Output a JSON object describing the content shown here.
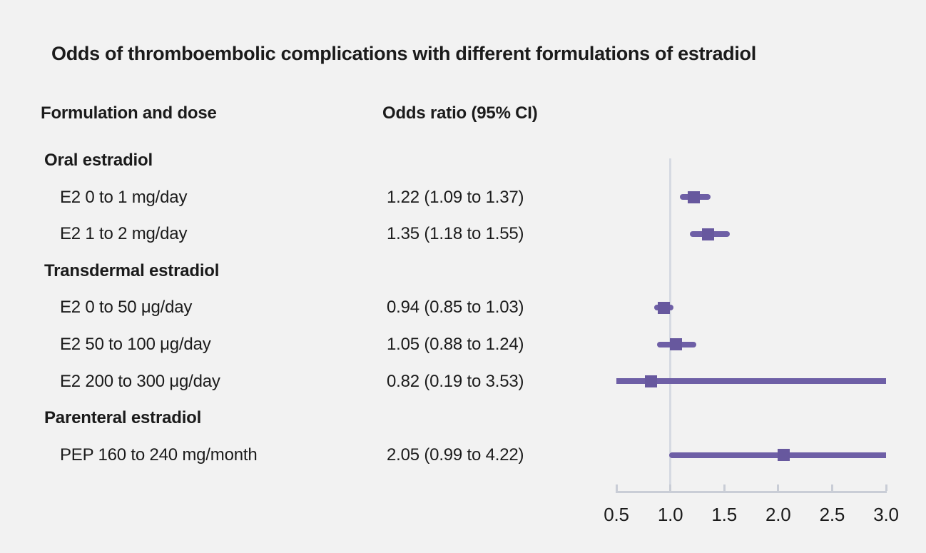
{
  "figure": {
    "title": "Odds of thromboembolic complications with different formulations of estradiol",
    "column_headers": {
      "formulation": "Formulation and dose",
      "odds_ratio": "Odds ratio (95% CI)"
    }
  },
  "chart_data": {
    "type": "forest",
    "title": "Odds of thromboembolic complications with different formulations of estradiol",
    "xlabel": "",
    "ylabel": "",
    "axis": {
      "min": 0.5,
      "max": 3.0,
      "ticks": [
        0.5,
        1.0,
        1.5,
        2.0,
        2.5,
        3.0
      ],
      "reference_line": 1.0,
      "grid": false
    },
    "rows": [
      {
        "kind": "group",
        "label": "Oral estradiol"
      },
      {
        "kind": "item",
        "label": "E2 0 to 1 mg/day",
        "or_text": "1.22 (1.09 to 1.37)",
        "or": 1.22,
        "ci_low": 1.09,
        "ci_high": 1.37
      },
      {
        "kind": "item",
        "label": "E2 1 to 2 mg/day",
        "or_text": "1.35 (1.18 to 1.55)",
        "or": 1.35,
        "ci_low": 1.18,
        "ci_high": 1.55
      },
      {
        "kind": "group",
        "label": "Transdermal estradiol"
      },
      {
        "kind": "item",
        "label": "E2 0 to 50 μg/day",
        "or_text": "0.94 (0.85 to 1.03)",
        "or": 0.94,
        "ci_low": 0.85,
        "ci_high": 1.03
      },
      {
        "kind": "item",
        "label": "E2 50 to 100 μg/day",
        "or_text": "1.05 (0.88 to 1.24)",
        "or": 1.05,
        "ci_low": 0.88,
        "ci_high": 1.24
      },
      {
        "kind": "item",
        "label": "E2 200 to 300 μg/day",
        "or_text": "0.82 (0.19 to 3.53)",
        "or": 0.82,
        "ci_low": 0.19,
        "ci_high": 3.53
      },
      {
        "kind": "group",
        "label": "Parenteral estradiol"
      },
      {
        "kind": "item",
        "label": "PEP 160 to 240 mg/month",
        "or_text": "2.05 (0.99 to 4.22)",
        "or": 2.05,
        "ci_low": 0.99,
        "ci_high": 4.22
      }
    ],
    "colors": {
      "marker": "#67589e",
      "ci_line": "#6e5fa6",
      "reference_line": "#d6dae2",
      "axis_line": "#c9cdd6",
      "text": "#1b1b1b",
      "background": "#f2f2f2"
    }
  }
}
